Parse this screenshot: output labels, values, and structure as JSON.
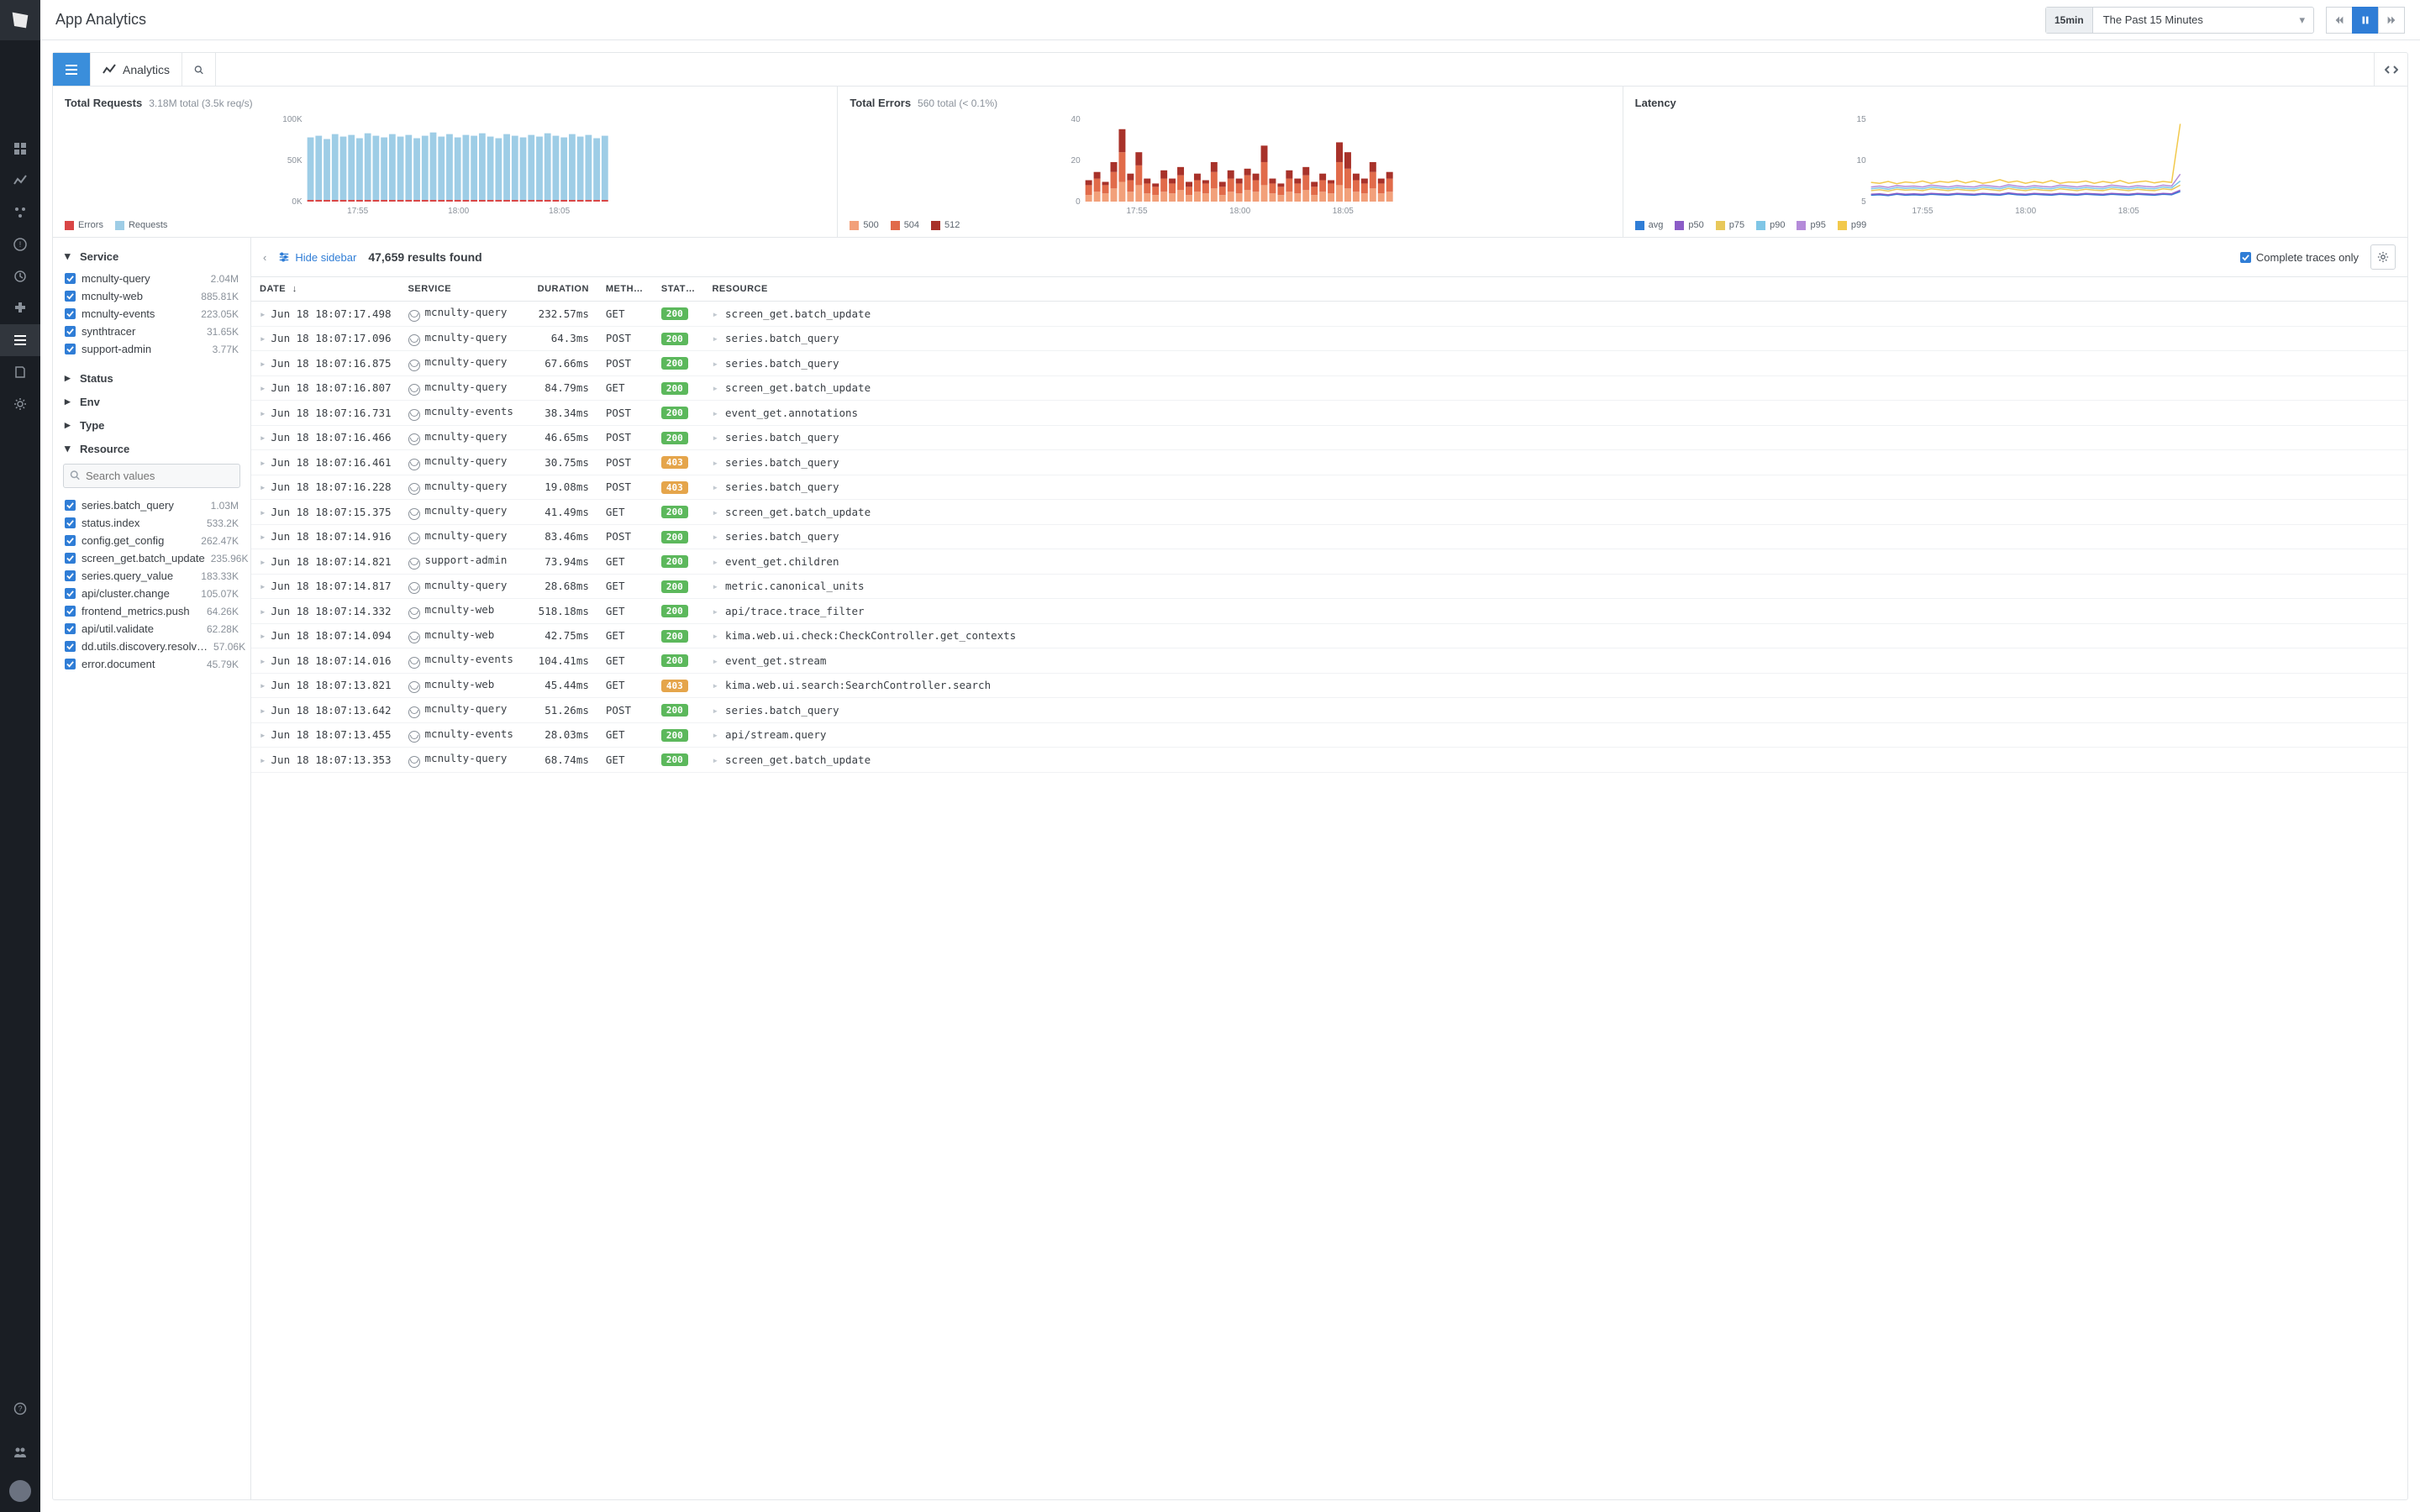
{
  "header": {
    "title": "App Analytics",
    "time_badge": "15min",
    "time_label": "The Past 15 Minutes"
  },
  "toolbar": {
    "analytics_label": "Analytics"
  },
  "charts": {
    "requests": {
      "title": "Total Requests",
      "subtitle": "3.18M total (3.5k req/s)",
      "type": "bar",
      "y_ticks": [
        "100K",
        "50K",
        "0K"
      ],
      "ylim": [
        0,
        100000
      ],
      "x_ticks": [
        "17:55",
        "18:00",
        "18:05"
      ],
      "series": [
        {
          "name": "Errors",
          "color": "#d94646"
        },
        {
          "name": "Requests",
          "color": "#9ecde6"
        }
      ],
      "legend": [
        {
          "label": "Errors",
          "color": "#d94646"
        },
        {
          "label": "Requests",
          "color": "#9ecde6"
        }
      ],
      "bars": [
        78,
        80,
        76,
        82,
        79,
        81,
        77,
        83,
        80,
        78,
        82,
        79,
        81,
        77,
        80,
        84,
        79,
        82,
        78,
        81,
        80,
        83,
        79,
        77,
        82,
        80,
        78,
        81,
        79,
        83,
        80,
        78,
        82,
        79,
        81,
        77,
        80
      ]
    },
    "errors": {
      "title": "Total Errors",
      "subtitle": "560 total (< 0.1%)",
      "type": "stacked-bar",
      "y_ticks": [
        "40",
        "20",
        "0"
      ],
      "ylim": [
        0,
        50
      ],
      "x_ticks": [
        "17:55",
        "18:00",
        "18:05"
      ],
      "legend": [
        {
          "label": "500",
          "color": "#f2a07a"
        },
        {
          "label": "504",
          "color": "#e16b4a"
        },
        {
          "label": "512",
          "color": "#a8322a"
        }
      ],
      "bars": [
        [
          4,
          6,
          3
        ],
        [
          6,
          8,
          4
        ],
        [
          5,
          5,
          2
        ],
        [
          8,
          10,
          6
        ],
        [
          12,
          18,
          14
        ],
        [
          6,
          7,
          4
        ],
        [
          10,
          12,
          8
        ],
        [
          5,
          6,
          3
        ],
        [
          4,
          5,
          2
        ],
        [
          6,
          8,
          5
        ],
        [
          5,
          6,
          3
        ],
        [
          7,
          9,
          5
        ],
        [
          4,
          5,
          3
        ],
        [
          6,
          7,
          4
        ],
        [
          5,
          6,
          2
        ],
        [
          8,
          10,
          6
        ],
        [
          4,
          5,
          3
        ],
        [
          6,
          8,
          5
        ],
        [
          5,
          6,
          3
        ],
        [
          7,
          9,
          4
        ],
        [
          6,
          7,
          4
        ],
        [
          10,
          14,
          10
        ],
        [
          5,
          6,
          3
        ],
        [
          4,
          5,
          2
        ],
        [
          6,
          8,
          5
        ],
        [
          5,
          6,
          3
        ],
        [
          7,
          9,
          5
        ],
        [
          4,
          5,
          3
        ],
        [
          6,
          7,
          4
        ],
        [
          5,
          6,
          2
        ],
        [
          10,
          14,
          12
        ],
        [
          8,
          12,
          10
        ],
        [
          6,
          7,
          4
        ],
        [
          5,
          6,
          3
        ],
        [
          8,
          10,
          6
        ],
        [
          5,
          6,
          3
        ],
        [
          6,
          8,
          4
        ]
      ]
    },
    "latency": {
      "title": "Latency",
      "type": "line",
      "y_ticks": [
        "15",
        "10",
        "5"
      ],
      "ylim": [
        0,
        18
      ],
      "x_ticks": [
        "17:55",
        "18:00",
        "18:05"
      ],
      "legend": [
        {
          "label": "avg",
          "color": "#2f7dd6"
        },
        {
          "label": "p50",
          "color": "#8b5cc7"
        },
        {
          "label": "p75",
          "color": "#e8c85a"
        },
        {
          "label": "p90",
          "color": "#7fc6e6"
        },
        {
          "label": "p95",
          "color": "#b48bd9"
        },
        {
          "label": "p99",
          "color": "#f2c94c"
        }
      ],
      "series": {
        "avg": [
          1.4,
          1.5,
          1.3,
          1.6,
          1.4,
          1.5,
          1.4,
          1.6,
          1.5,
          1.4,
          1.6,
          1.5,
          1.4,
          1.6,
          1.5,
          1.4,
          1.7,
          1.5,
          1.4,
          1.6,
          1.5,
          1.4,
          1.6,
          1.5,
          1.4,
          1.6,
          1.5,
          1.4,
          1.6,
          1.5,
          1.4,
          1.6,
          1.5,
          1.4,
          1.6,
          1.5,
          2.2
        ],
        "p50": [
          1.6,
          1.7,
          1.5,
          1.8,
          1.6,
          1.7,
          1.6,
          1.8,
          1.7,
          1.6,
          1.8,
          1.7,
          1.6,
          1.8,
          1.7,
          1.6,
          1.9,
          1.7,
          1.6,
          1.8,
          1.7,
          1.6,
          1.8,
          1.7,
          1.6,
          1.8,
          1.7,
          1.6,
          1.8,
          1.7,
          1.6,
          1.8,
          1.7,
          1.6,
          1.8,
          1.7,
          2.5
        ],
        "p75": [
          2.4,
          2.6,
          2.3,
          2.7,
          2.5,
          2.6,
          2.4,
          2.8,
          2.6,
          2.4,
          2.7,
          2.5,
          2.4,
          2.8,
          2.6,
          2.4,
          2.9,
          2.6,
          2.4,
          2.7,
          2.5,
          2.4,
          2.8,
          2.6,
          2.4,
          2.7,
          2.5,
          2.4,
          2.8,
          2.6,
          2.4,
          2.7,
          2.5,
          2.4,
          2.8,
          2.6,
          3.6
        ],
        "p90": [
          2.8,
          3.0,
          2.7,
          3.1,
          2.9,
          3.0,
          2.8,
          3.2,
          3.0,
          2.8,
          3.1,
          2.9,
          2.8,
          3.2,
          3.0,
          2.8,
          3.3,
          3.0,
          2.8,
          3.1,
          2.9,
          2.8,
          3.2,
          3.0,
          2.8,
          3.1,
          2.9,
          2.8,
          3.2,
          3.0,
          2.8,
          3.1,
          2.9,
          2.8,
          3.2,
          3.0,
          4.5
        ],
        "p95": [
          3.2,
          3.4,
          3.1,
          3.5,
          3.3,
          3.4,
          3.2,
          3.6,
          3.4,
          3.2,
          3.5,
          3.3,
          3.2,
          3.6,
          3.4,
          3.2,
          3.7,
          3.4,
          3.2,
          3.5,
          3.3,
          3.2,
          3.6,
          3.4,
          3.2,
          3.5,
          3.3,
          3.2,
          3.6,
          3.4,
          3.2,
          3.5,
          3.3,
          3.2,
          3.6,
          3.4,
          6.0
        ],
        "p99": [
          4.2,
          4.0,
          4.4,
          3.9,
          4.3,
          4.1,
          4.5,
          4.0,
          4.4,
          4.2,
          4.6,
          4.1,
          4.5,
          4.0,
          4.3,
          4.8,
          4.2,
          4.5,
          4.0,
          4.4,
          4.1,
          4.6,
          4.0,
          4.3,
          4.2,
          4.5,
          4.0,
          4.4,
          4.1,
          4.6,
          4.0,
          4.3,
          4.5,
          4.1,
          4.4,
          4.2,
          17.0
        ]
      }
    }
  },
  "facets": {
    "service": {
      "label": "Service",
      "expanded": true,
      "items": [
        {
          "name": "mcnulty-query",
          "count": "2.04M"
        },
        {
          "name": "mcnulty-web",
          "count": "885.81K"
        },
        {
          "name": "mcnulty-events",
          "count": "223.05K"
        },
        {
          "name": "synthtracer",
          "count": "31.65K"
        },
        {
          "name": "support-admin",
          "count": "3.77K"
        }
      ]
    },
    "status": {
      "label": "Status",
      "expanded": false
    },
    "env": {
      "label": "Env",
      "expanded": false
    },
    "type": {
      "label": "Type",
      "expanded": false
    },
    "resource": {
      "label": "Resource",
      "expanded": true,
      "search_placeholder": "Search values",
      "items": [
        {
          "name": "series.batch_query",
          "count": "1.03M"
        },
        {
          "name": "status.index",
          "count": "533.2K"
        },
        {
          "name": "config.get_config",
          "count": "262.47K"
        },
        {
          "name": "screen_get.batch_update",
          "count": "235.96K"
        },
        {
          "name": "series.query_value",
          "count": "183.33K"
        },
        {
          "name": "api/cluster.change",
          "count": "105.07K"
        },
        {
          "name": "frontend_metrics.push",
          "count": "64.26K"
        },
        {
          "name": "api/util.validate",
          "count": "62.28K"
        },
        {
          "name": "dd.utils.discovery.resolv…",
          "count": "57.06K"
        },
        {
          "name": "error.document",
          "count": "45.79K"
        }
      ]
    }
  },
  "results": {
    "hide_sidebar_label": "Hide sidebar",
    "count_text": "47,659 results found",
    "complete_traces_label": "Complete traces only",
    "columns": [
      "DATE",
      "SERVICE",
      "DURATION",
      "METH…",
      "STAT…",
      "RESOURCE"
    ],
    "status_colors": {
      "200": "#5cb85c",
      "403": "#e5a54b"
    },
    "rows": [
      {
        "date": "Jun 18 18:07:17.498",
        "service": "mcnulty-query",
        "duration": "232.57ms",
        "method": "GET",
        "status": "200",
        "resource": "screen_get.batch_update"
      },
      {
        "date": "Jun 18 18:07:17.096",
        "service": "mcnulty-query",
        "duration": "64.3ms",
        "method": "POST",
        "status": "200",
        "resource": "series.batch_query"
      },
      {
        "date": "Jun 18 18:07:16.875",
        "service": "mcnulty-query",
        "duration": "67.66ms",
        "method": "POST",
        "status": "200",
        "resource": "series.batch_query"
      },
      {
        "date": "Jun 18 18:07:16.807",
        "service": "mcnulty-query",
        "duration": "84.79ms",
        "method": "GET",
        "status": "200",
        "resource": "screen_get.batch_update"
      },
      {
        "date": "Jun 18 18:07:16.731",
        "service": "mcnulty-events",
        "duration": "38.34ms",
        "method": "POST",
        "status": "200",
        "resource": "event_get.annotations"
      },
      {
        "date": "Jun 18 18:07:16.466",
        "service": "mcnulty-query",
        "duration": "46.65ms",
        "method": "POST",
        "status": "200",
        "resource": "series.batch_query"
      },
      {
        "date": "Jun 18 18:07:16.461",
        "service": "mcnulty-query",
        "duration": "30.75ms",
        "method": "POST",
        "status": "403",
        "resource": "series.batch_query"
      },
      {
        "date": "Jun 18 18:07:16.228",
        "service": "mcnulty-query",
        "duration": "19.08ms",
        "method": "POST",
        "status": "403",
        "resource": "series.batch_query"
      },
      {
        "date": "Jun 18 18:07:15.375",
        "service": "mcnulty-query",
        "duration": "41.49ms",
        "method": "GET",
        "status": "200",
        "resource": "screen_get.batch_update"
      },
      {
        "date": "Jun 18 18:07:14.916",
        "service": "mcnulty-query",
        "duration": "83.46ms",
        "method": "POST",
        "status": "200",
        "resource": "series.batch_query"
      },
      {
        "date": "Jun 18 18:07:14.821",
        "service": "support-admin",
        "duration": "73.94ms",
        "method": "GET",
        "status": "200",
        "resource": "event_get.children"
      },
      {
        "date": "Jun 18 18:07:14.817",
        "service": "mcnulty-query",
        "duration": "28.68ms",
        "method": "GET",
        "status": "200",
        "resource": "metric.canonical_units"
      },
      {
        "date": "Jun 18 18:07:14.332",
        "service": "mcnulty-web",
        "duration": "518.18ms",
        "method": "GET",
        "status": "200",
        "resource": "api/trace.trace_filter"
      },
      {
        "date": "Jun 18 18:07:14.094",
        "service": "mcnulty-web",
        "duration": "42.75ms",
        "method": "GET",
        "status": "200",
        "resource": "kima.web.ui.check:CheckController.get_contexts"
      },
      {
        "date": "Jun 18 18:07:14.016",
        "service": "mcnulty-events",
        "duration": "104.41ms",
        "method": "GET",
        "status": "200",
        "resource": "event_get.stream"
      },
      {
        "date": "Jun 18 18:07:13.821",
        "service": "mcnulty-web",
        "duration": "45.44ms",
        "method": "GET",
        "status": "403",
        "resource": "kima.web.ui.search:SearchController.search"
      },
      {
        "date": "Jun 18 18:07:13.642",
        "service": "mcnulty-query",
        "duration": "51.26ms",
        "method": "POST",
        "status": "200",
        "resource": "series.batch_query"
      },
      {
        "date": "Jun 18 18:07:13.455",
        "service": "mcnulty-events",
        "duration": "28.03ms",
        "method": "GET",
        "status": "200",
        "resource": "api/stream.query"
      },
      {
        "date": "Jun 18 18:07:13.353",
        "service": "mcnulty-query",
        "duration": "68.74ms",
        "method": "GET",
        "status": "200",
        "resource": "screen_get.batch_update"
      }
    ]
  }
}
